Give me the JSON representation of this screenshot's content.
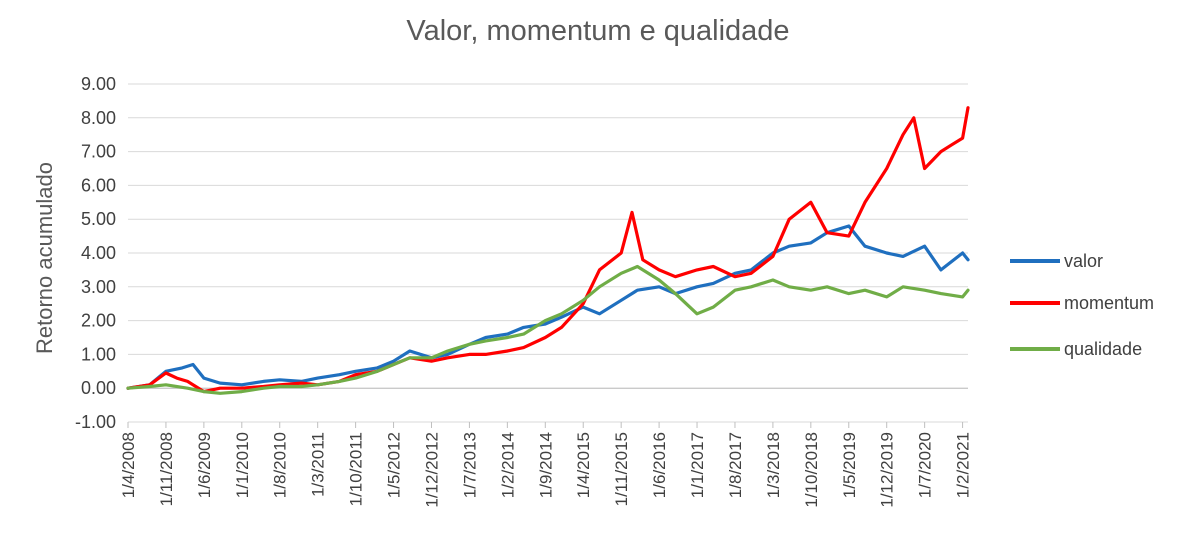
{
  "chart_data": {
    "type": "line",
    "title": "Valor, momentum e qualidade",
    "xlabel": "",
    "ylabel": "Retorno acumulado",
    "ylim": [
      -1.0,
      9.0
    ],
    "yticks": [
      "9.00",
      "8.00",
      "7.00",
      "6.00",
      "5.00",
      "4.00",
      "3.00",
      "2.00",
      "1.00",
      "0.00",
      "-1.00"
    ],
    "xlim": [
      "1/4/2008",
      "1/3/2021"
    ],
    "xticks": [
      "1/4/2008",
      "1/11/2008",
      "1/6/2009",
      "1/1/2010",
      "1/8/2010",
      "1/3/2011",
      "1/10/2011",
      "1/5/2012",
      "1/12/2012",
      "1/7/2013",
      "1/2/2014",
      "1/9/2014",
      "1/4/2015",
      "1/11/2015",
      "1/6/2016",
      "1/1/2017",
      "1/8/2017",
      "1/3/2018",
      "1/10/2018",
      "1/5/2019",
      "1/12/2019",
      "1/7/2020",
      "1/2/2021"
    ],
    "grid": true,
    "legend": "right",
    "series": [
      {
        "name": "valor",
        "color": "#1f6fbf",
        "x": [
          "1/4/2008",
          "1/8/2008",
          "1/11/2008",
          "1/2/2009",
          "1/4/2009",
          "1/6/2009",
          "1/9/2009",
          "1/1/2010",
          "1/5/2010",
          "1/8/2010",
          "1/12/2010",
          "1/3/2011",
          "1/7/2011",
          "1/10/2011",
          "1/2/2012",
          "1/5/2012",
          "1/8/2012",
          "1/12/2012",
          "1/3/2013",
          "1/7/2013",
          "1/10/2013",
          "1/2/2014",
          "1/5/2014",
          "1/9/2014",
          "1/12/2014",
          "1/4/2015",
          "1/7/2015",
          "1/11/2015",
          "1/2/2016",
          "1/6/2016",
          "1/9/2016",
          "1/1/2017",
          "1/4/2017",
          "1/8/2017",
          "1/11/2017",
          "1/3/2018",
          "1/6/2018",
          "1/10/2018",
          "1/1/2019",
          "1/5/2019",
          "1/8/2019",
          "1/12/2019",
          "1/3/2020",
          "1/7/2020",
          "1/10/2020",
          "1/2/2021",
          "1/3/2021"
        ],
        "y": [
          0.0,
          0.1,
          0.5,
          0.6,
          0.7,
          0.3,
          0.15,
          0.1,
          0.2,
          0.25,
          0.2,
          0.3,
          0.4,
          0.5,
          0.6,
          0.8,
          1.1,
          0.9,
          1.0,
          1.3,
          1.5,
          1.6,
          1.8,
          1.9,
          2.1,
          2.4,
          2.2,
          2.6,
          2.9,
          3.0,
          2.8,
          3.0,
          3.1,
          3.4,
          3.5,
          4.0,
          4.2,
          4.3,
          4.6,
          4.8,
          4.2,
          4.0,
          3.9,
          4.2,
          3.5,
          4.0,
          3.8
        ]
      },
      {
        "name": "momentum",
        "color": "#ff0000",
        "x": [
          "1/4/2008",
          "1/8/2008",
          "1/11/2008",
          "1/1/2009",
          "1/3/2009",
          "1/6/2009",
          "1/9/2009",
          "1/1/2010",
          "1/5/2010",
          "1/8/2010",
          "1/12/2010",
          "1/3/2011",
          "1/7/2011",
          "1/10/2011",
          "1/2/2012",
          "1/5/2012",
          "1/8/2012",
          "1/12/2012",
          "1/3/2013",
          "1/7/2013",
          "1/10/2013",
          "1/2/2014",
          "1/5/2014",
          "1/9/2014",
          "1/12/2014",
          "1/4/2015",
          "1/7/2015",
          "1/11/2015",
          "1/1/2016",
          "1/3/2016",
          "1/6/2016",
          "1/9/2016",
          "1/1/2017",
          "1/4/2017",
          "1/8/2017",
          "1/11/2017",
          "1/3/2018",
          "1/6/2018",
          "1/10/2018",
          "1/1/2019",
          "1/5/2019",
          "1/8/2019",
          "1/12/2019",
          "1/3/2020",
          "1/5/2020",
          "1/7/2020",
          "1/10/2020",
          "1/12/2020",
          "1/2/2021",
          "1/3/2021"
        ],
        "y": [
          0.0,
          0.1,
          0.45,
          0.3,
          0.2,
          -0.1,
          0.0,
          0.0,
          0.05,
          0.1,
          0.15,
          0.1,
          0.2,
          0.4,
          0.5,
          0.7,
          0.9,
          0.8,
          0.9,
          1.0,
          1.0,
          1.1,
          1.2,
          1.5,
          1.8,
          2.5,
          3.5,
          4.0,
          5.2,
          3.8,
          3.5,
          3.3,
          3.5,
          3.6,
          3.3,
          3.4,
          3.9,
          5.0,
          5.5,
          4.6,
          4.5,
          5.5,
          6.5,
          7.5,
          8.0,
          6.5,
          7.0,
          7.2,
          7.4,
          8.3
        ]
      },
      {
        "name": "qualidade",
        "color": "#70ad47",
        "x": [
          "1/4/2008",
          "1/8/2008",
          "1/11/2008",
          "1/3/2009",
          "1/6/2009",
          "1/9/2009",
          "1/1/2010",
          "1/5/2010",
          "1/8/2010",
          "1/12/2010",
          "1/3/2011",
          "1/7/2011",
          "1/10/2011",
          "1/2/2012",
          "1/5/2012",
          "1/8/2012",
          "1/12/2012",
          "1/3/2013",
          "1/7/2013",
          "1/10/2013",
          "1/2/2014",
          "1/5/2014",
          "1/9/2014",
          "1/12/2014",
          "1/4/2015",
          "1/7/2015",
          "1/11/2015",
          "1/2/2016",
          "1/6/2016",
          "1/9/2016",
          "1/1/2017",
          "1/4/2017",
          "1/8/2017",
          "1/11/2017",
          "1/3/2018",
          "1/6/2018",
          "1/10/2018",
          "1/1/2019",
          "1/5/2019",
          "1/8/2019",
          "1/12/2019",
          "1/3/2020",
          "1/7/2020",
          "1/10/2020",
          "1/2/2021",
          "1/3/2021"
        ],
        "y": [
          0.0,
          0.05,
          0.1,
          0.0,
          -0.1,
          -0.15,
          -0.1,
          0.0,
          0.05,
          0.05,
          0.1,
          0.2,
          0.3,
          0.5,
          0.7,
          0.9,
          0.9,
          1.1,
          1.3,
          1.4,
          1.5,
          1.6,
          2.0,
          2.2,
          2.6,
          3.0,
          3.4,
          3.6,
          3.2,
          2.8,
          2.2,
          2.4,
          2.9,
          3.0,
          3.2,
          3.0,
          2.9,
          3.0,
          2.8,
          2.9,
          2.7,
          3.0,
          2.9,
          2.8,
          2.7,
          2.9
        ]
      }
    ]
  }
}
